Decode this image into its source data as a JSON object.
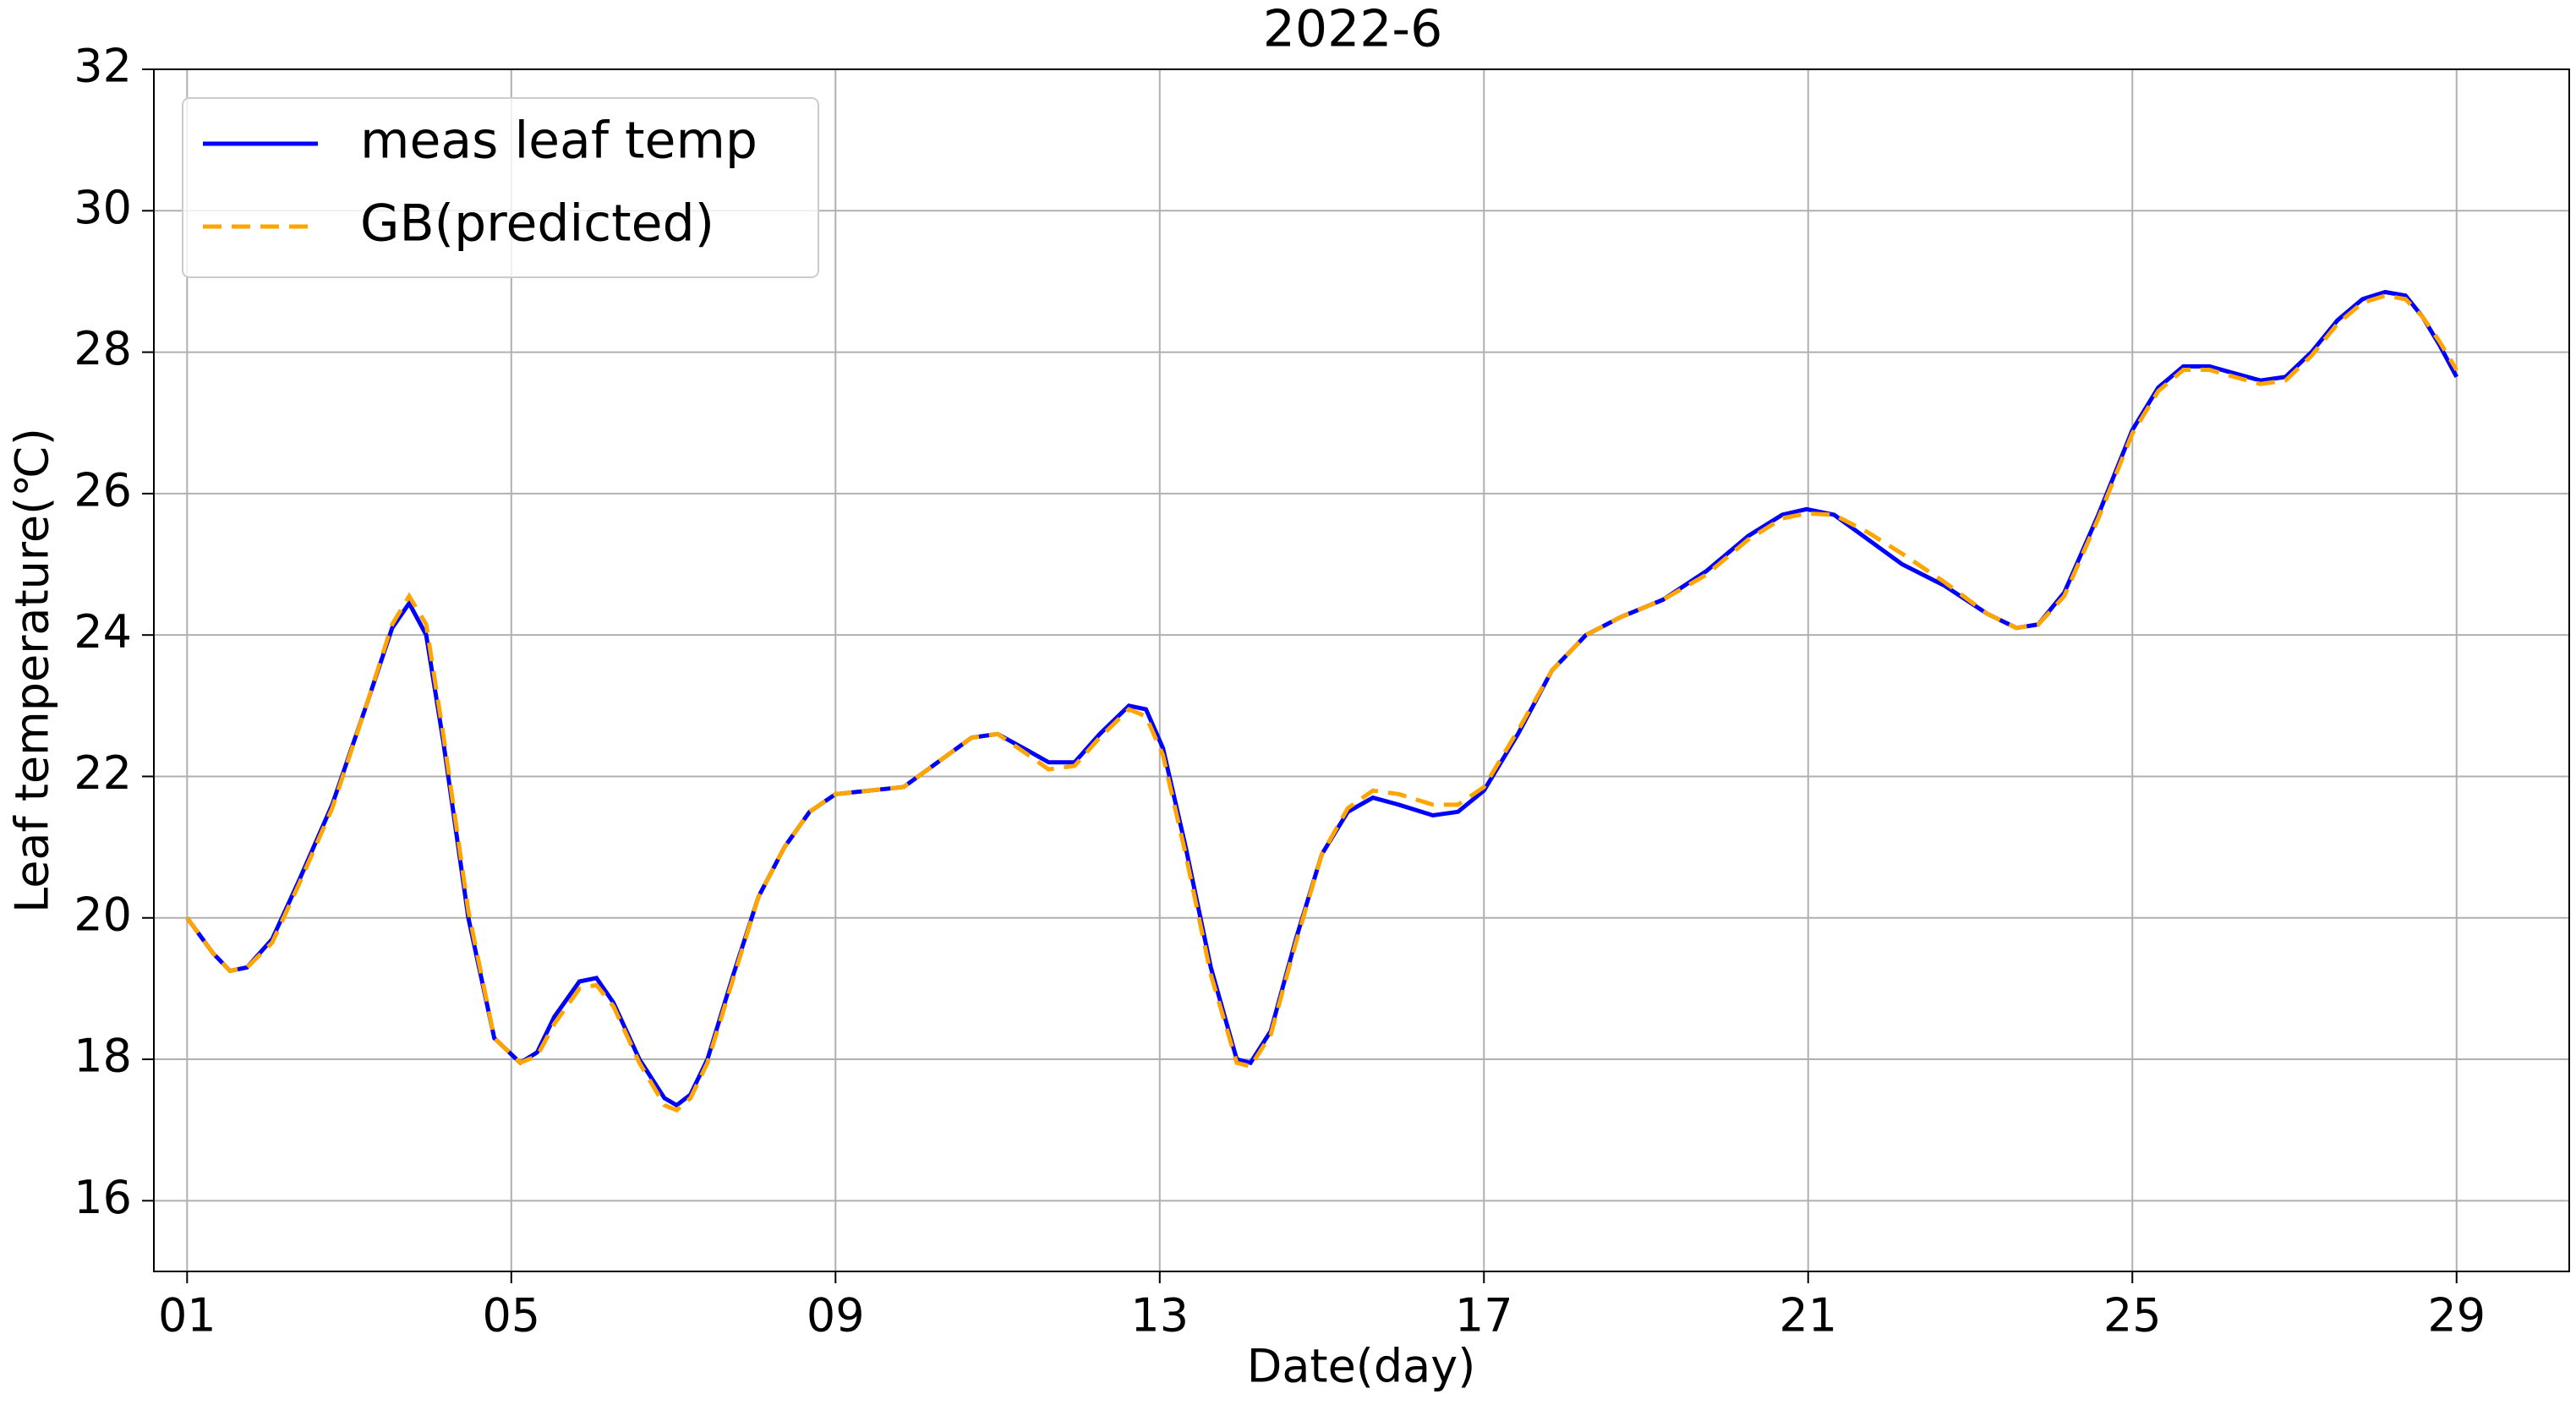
{
  "chart_data": {
    "type": "line",
    "title": "2022-6",
    "x_label": "Date(day)",
    "y_label": "Leaf temperature(℃)",
    "x": [
      1.0,
      1.32,
      1.53,
      1.74,
      2.05,
      2.37,
      2.79,
      3.21,
      3.53,
      3.74,
      3.95,
      4.16,
      4.47,
      4.79,
      5.11,
      5.32,
      5.53,
      5.84,
      6.05,
      6.26,
      6.58,
      6.89,
      7.04,
      7.21,
      7.42,
      7.74,
      8.05,
      8.37,
      8.68,
      9.0,
      9.42,
      9.84,
      10.26,
      10.68,
      11.0,
      11.32,
      11.63,
      11.95,
      12.26,
      12.62,
      12.83,
      13.04,
      13.32,
      13.63,
      13.95,
      14.12,
      14.37,
      14.68,
      15.0,
      15.32,
      15.63,
      15.95,
      16.37,
      16.68,
      17.0,
      17.42,
      17.84,
      18.26,
      18.68,
      19.21,
      19.74,
      20.26,
      20.68,
      20.98,
      21.32,
      21.74,
      22.16,
      22.68,
      23.21,
      23.57,
      23.84,
      24.16,
      24.58,
      25.0,
      25.32,
      25.63,
      25.95,
      26.26,
      26.58,
      26.89,
      27.21,
      27.53,
      27.84,
      28.12,
      28.37,
      28.58,
      28.79,
      29.0
    ],
    "series": [
      {
        "name": "meas leaf temp",
        "color": "#0000ff",
        "dash": "solid",
        "values": [
          20.0,
          19.5,
          19.25,
          19.3,
          19.7,
          20.5,
          21.6,
          23.0,
          24.1,
          24.45,
          24.0,
          22.5,
          20.0,
          18.3,
          17.95,
          18.1,
          18.6,
          19.1,
          19.15,
          18.8,
          18.0,
          17.45,
          17.35,
          17.5,
          18.0,
          19.2,
          20.3,
          21.0,
          21.5,
          21.75,
          21.8,
          21.85,
          22.2,
          22.55,
          22.6,
          22.4,
          22.2,
          22.2,
          22.6,
          23.0,
          22.95,
          22.4,
          21.0,
          19.3,
          18.0,
          17.95,
          18.4,
          19.7,
          20.9,
          21.5,
          21.7,
          21.6,
          21.45,
          21.5,
          21.8,
          22.6,
          23.5,
          24.0,
          24.25,
          24.5,
          24.9,
          25.4,
          25.7,
          25.78,
          25.7,
          25.35,
          25.0,
          24.7,
          24.3,
          24.1,
          24.15,
          24.6,
          25.7,
          26.9,
          27.5,
          27.8,
          27.8,
          27.7,
          27.6,
          27.65,
          28.0,
          28.45,
          28.75,
          28.85,
          28.8,
          28.5,
          28.1,
          27.65
        ]
      },
      {
        "name": "GB(predicted)",
        "color": "#ffa500",
        "dash": "dashed",
        "values": [
          20.0,
          19.5,
          19.25,
          19.3,
          19.65,
          20.45,
          21.55,
          23.0,
          24.15,
          24.55,
          24.15,
          22.6,
          20.1,
          18.3,
          17.95,
          18.05,
          18.5,
          19.0,
          19.05,
          18.75,
          17.95,
          17.35,
          17.28,
          17.45,
          17.95,
          19.15,
          20.3,
          21.0,
          21.5,
          21.75,
          21.8,
          21.85,
          22.2,
          22.55,
          22.6,
          22.35,
          22.1,
          22.15,
          22.55,
          22.95,
          22.85,
          22.3,
          20.9,
          19.2,
          17.95,
          17.9,
          18.35,
          19.65,
          20.9,
          21.55,
          21.8,
          21.75,
          21.6,
          21.6,
          21.85,
          22.65,
          23.5,
          24.0,
          24.25,
          24.5,
          24.85,
          25.35,
          25.65,
          25.72,
          25.7,
          25.45,
          25.15,
          24.75,
          24.3,
          24.1,
          24.15,
          24.55,
          25.65,
          26.85,
          27.45,
          27.75,
          27.75,
          27.65,
          27.55,
          27.6,
          27.95,
          28.4,
          28.7,
          28.8,
          28.75,
          28.5,
          28.15,
          27.75
        ]
      }
    ],
    "xlim": [
      0.59,
      30.39
    ],
    "ylim": [
      15,
      32
    ],
    "xticks": [
      {
        "value": 1,
        "label": "01"
      },
      {
        "value": 5,
        "label": "05"
      },
      {
        "value": 9,
        "label": "09"
      },
      {
        "value": 13,
        "label": "13"
      },
      {
        "value": 17,
        "label": "17"
      },
      {
        "value": 21,
        "label": "21"
      },
      {
        "value": 25,
        "label": "25"
      },
      {
        "value": 29,
        "label": "29"
      }
    ],
    "yticks": [
      16,
      18,
      20,
      22,
      24,
      26,
      28,
      30,
      32
    ],
    "grid": true,
    "legend": "upper left"
  }
}
